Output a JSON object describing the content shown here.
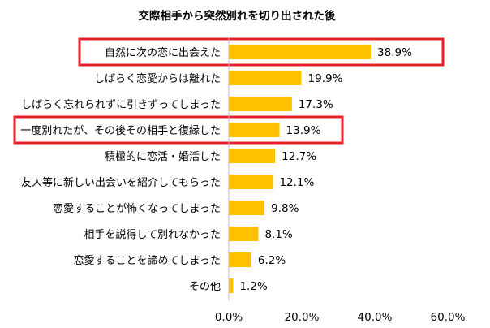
{
  "chart_data": {
    "type": "bar",
    "orientation": "horizontal",
    "title": "交際相手から突然別れを切り出された後",
    "categories": [
      "自然に次の恋に出会えた",
      "しばらく恋愛からは離れた",
      "しばらく忘れられずに引きずってしまった",
      "一度別れたが、その後その相手と復縁した",
      "積極的に恋活・婚活した",
      "友人等に新しい出会いを紹介してもらった",
      "恋愛することが怖くなってしまった",
      "相手を説得して別れなかった",
      "恋愛することを諦めてしまった",
      "その他"
    ],
    "values": [
      38.9,
      19.9,
      17.3,
      13.9,
      12.7,
      12.1,
      9.8,
      8.1,
      6.2,
      1.2
    ],
    "value_labels": [
      "38.9%",
      "19.9%",
      "17.3%",
      "13.9%",
      "12.7%",
      "12.1%",
      "9.8%",
      "8.1%",
      "6.2%",
      "1.2%"
    ],
    "xlim": [
      0,
      60
    ],
    "x_ticks": [
      0,
      20,
      40,
      60
    ],
    "x_tick_labels": [
      "0.0%",
      "20.0%",
      "40.0%",
      "60.0%"
    ],
    "highlighted_categories": [
      "自然に次の恋に出会えた",
      "一度別れたが、その後その相手と復縁した"
    ],
    "grid": false,
    "legend": "none",
    "colors": {
      "bar": "#FFC000",
      "highlight_border": "#E8202A",
      "axis": "#BFBFBF"
    }
  }
}
